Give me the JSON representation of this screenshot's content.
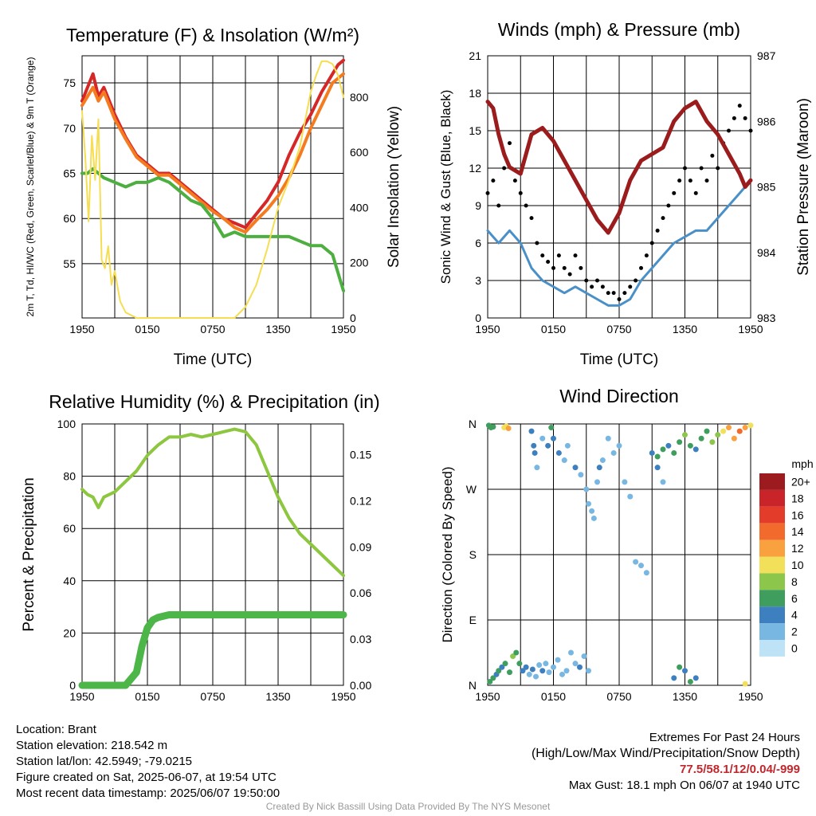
{
  "colors": {
    "red": "#d62728",
    "orange": "#f47b20",
    "green": "#4caf3f",
    "yellow": "#f5de52",
    "blue": "#4a90c8",
    "black": "#000000",
    "maroon": "#9b1c1c",
    "rh_green": "#8dc63f",
    "precip_green": "#4cb648"
  },
  "chart_data": [
    {
      "id": "temperature",
      "type": "line",
      "title": "Temperature (F) & Insolation (W/m²)",
      "xlabel": "Time (UTC)",
      "ylabel": "2m T, Td, HI/WC (Red, Green, Scarlet/Blue) & 9m T (Orange)",
      "ylabel2": "Solar Insolation (Yellow)",
      "x_ticks": [
        "1950",
        "0150",
        "0750",
        "1350",
        "1950"
      ],
      "x_hours_span": 24,
      "ylim": [
        49,
        78
      ],
      "y_ticks": [
        55,
        60,
        65,
        70,
        75
      ],
      "y2lim": [
        0,
        950
      ],
      "y2_ticks": [
        0,
        200,
        400,
        600,
        800
      ],
      "grid": true,
      "series": [
        {
          "axis": "left",
          "color": "red",
          "x": [
            0,
            0.5,
            1,
            1.5,
            2,
            3,
            4,
            5,
            6,
            7,
            8,
            9,
            10,
            11,
            12,
            13,
            14,
            15,
            16,
            17,
            18,
            19,
            20,
            21,
            22,
            23,
            23.5,
            24
          ],
          "y": [
            73,
            74.5,
            76,
            73.5,
            74.5,
            71.5,
            69,
            67,
            66,
            65,
            65,
            64,
            63,
            62,
            61,
            60,
            59.5,
            59,
            60.5,
            62,
            64,
            67,
            69.5,
            71.5,
            74,
            76,
            77,
            77.5
          ]
        },
        {
          "axis": "left",
          "color": "orange",
          "x": [
            0,
            0.5,
            1,
            1.5,
            2,
            3,
            4,
            5,
            6,
            7,
            8,
            9,
            10,
            11,
            12,
            13,
            14,
            15,
            16,
            17,
            18,
            19,
            20,
            21,
            22,
            23,
            23.5,
            24
          ],
          "y": [
            72.5,
            73.5,
            74.5,
            73,
            74,
            71,
            68.8,
            66.8,
            65.8,
            64.8,
            64.8,
            63.8,
            62.8,
            61.8,
            60.8,
            60,
            59,
            58.5,
            59.8,
            61,
            62.5,
            64.5,
            67,
            70,
            72.5,
            75,
            75.5,
            76
          ]
        },
        {
          "axis": "left",
          "color": "green",
          "x": [
            0,
            0.5,
            1,
            1.5,
            2,
            3,
            4,
            5,
            6,
            7,
            8,
            9,
            10,
            11,
            12,
            13,
            14,
            15,
            16,
            17,
            18,
            19,
            20,
            21,
            22,
            23,
            23.5,
            24
          ],
          "y": [
            65,
            65,
            65.5,
            65,
            64.5,
            64,
            63.5,
            64,
            64,
            64.5,
            64,
            63,
            62,
            61.5,
            60,
            58,
            58.5,
            58,
            58,
            58,
            58,
            58,
            57.5,
            57,
            57,
            56,
            54,
            52
          ]
        },
        {
          "axis": "right",
          "color": "yellow",
          "x": [
            0,
            0.3,
            0.6,
            0.9,
            1.2,
            1.5,
            1.8,
            2.1,
            2.4,
            2.7,
            3,
            3.5,
            4,
            5,
            6,
            7,
            8,
            9,
            10,
            11,
            12,
            13,
            14,
            15,
            16,
            17,
            18,
            19,
            20,
            21,
            21.5,
            22,
            22.5,
            23,
            23.5,
            24
          ],
          "y": [
            750,
            580,
            350,
            660,
            500,
            720,
            210,
            180,
            260,
            120,
            170,
            60,
            20,
            0,
            0,
            0,
            0,
            0,
            0,
            0,
            0,
            0,
            0,
            40,
            120,
            250,
            400,
            500,
            620,
            820,
            880,
            930,
            930,
            920,
            880,
            800
          ]
        }
      ]
    },
    {
      "id": "winds",
      "type": "line",
      "title": "Winds (mph) & Pressure (mb)",
      "xlabel": "Time (UTC)",
      "ylabel": "Sonic Wind & Gust (Blue, Black)",
      "ylabel2": "Station Pressure (Maroon)",
      "x_ticks": [
        "1950",
        "0150",
        "0750",
        "1350",
        "1950"
      ],
      "ylim": [
        0,
        21
      ],
      "y_ticks": [
        0,
        3,
        6,
        9,
        12,
        15,
        18,
        21
      ],
      "y2lim": [
        983,
        987
      ],
      "y2_ticks": [
        983,
        984,
        985,
        986,
        987
      ],
      "grid": true,
      "series": [
        {
          "axis": "left",
          "color": "blue",
          "type": "line",
          "x": [
            0,
            1,
            2,
            3,
            4,
            5,
            6,
            7,
            8,
            9,
            10,
            11,
            12,
            13,
            14,
            15,
            16,
            17,
            18,
            19,
            20,
            21,
            22,
            23,
            24
          ],
          "y": [
            7,
            6,
            7,
            6,
            4,
            3,
            2.5,
            2,
            2.5,
            2,
            1.5,
            1,
            1,
            1.5,
            3,
            4,
            5,
            6,
            6.5,
            7,
            7,
            8,
            9,
            10,
            11
          ]
        },
        {
          "axis": "left",
          "color": "black",
          "type": "scatter",
          "x": [
            0,
            0.5,
            1,
            1.5,
            2,
            2.5,
            3,
            3.5,
            4,
            4.5,
            5,
            5.5,
            6,
            6.5,
            7,
            7.5,
            8,
            8.5,
            9,
            9.5,
            10,
            10.5,
            11,
            11.5,
            12,
            12.5,
            13,
            13.5,
            14,
            14.5,
            15,
            15.5,
            16,
            16.5,
            17,
            17.5,
            18,
            18.5,
            19,
            19.5,
            20,
            20.5,
            21,
            21.5,
            22,
            22.5,
            23,
            23.5,
            24
          ],
          "y": [
            10,
            11,
            9,
            12,
            14,
            11,
            10,
            9,
            8,
            6,
            5,
            4.5,
            4,
            5,
            4,
            3.5,
            5,
            4,
            3,
            2.5,
            3,
            2.5,
            2,
            2,
            1.5,
            2,
            2.5,
            3,
            4,
            5,
            6,
            7,
            8,
            9,
            10,
            11,
            12,
            11,
            10,
            12,
            11,
            13,
            12,
            14,
            15,
            16,
            17,
            16,
            15
          ]
        },
        {
          "axis": "right",
          "color": "maroon",
          "type": "line",
          "x": [
            0,
            0.5,
            1,
            1.5,
            2,
            3,
            4,
            5,
            6,
            7,
            8,
            9,
            10,
            11,
            12,
            13,
            14,
            15,
            16,
            17,
            18,
            19,
            20,
            21,
            22,
            23,
            23.5,
            24
          ],
          "y": [
            986.3,
            986.2,
            985.8,
            985.5,
            985.3,
            985.2,
            985.8,
            985.9,
            985.7,
            985.4,
            985.1,
            984.8,
            984.5,
            984.3,
            984.6,
            985.1,
            985.4,
            985.5,
            985.6,
            986.0,
            986.2,
            986.3,
            986.0,
            985.8,
            985.5,
            985.2,
            985.0,
            985.1
          ]
        }
      ]
    },
    {
      "id": "humidity",
      "type": "line",
      "title": "Relative Humidity (%) & Precipitation (in)",
      "xlabel": "",
      "ylabel": "Percent & Precipitation",
      "x_ticks": [
        "1950",
        "0150",
        "0750",
        "1350",
        "1950"
      ],
      "ylim": [
        0,
        100
      ],
      "y_ticks": [
        0,
        20,
        40,
        60,
        80,
        100
      ],
      "y2lim": [
        0,
        0.17
      ],
      "y2_ticks": [
        "0.00",
        "0.03",
        "0.06",
        "0.09",
        "0.12",
        "0.15"
      ],
      "grid": true,
      "series": [
        {
          "axis": "left",
          "color": "rh_green",
          "x": [
            0,
            0.5,
            1,
            1.5,
            2,
            3,
            4,
            5,
            6,
            7,
            8,
            9,
            10,
            11,
            12,
            13,
            14,
            15,
            16,
            17,
            18,
            19,
            20,
            21,
            22,
            23,
            23.5,
            24
          ],
          "y": [
            75,
            73,
            72,
            68,
            72,
            74,
            78,
            82,
            88,
            92,
            95,
            95,
            96,
            95,
            96,
            97,
            98,
            97,
            92,
            82,
            72,
            64,
            58,
            54,
            50,
            46,
            44,
            42
          ]
        },
        {
          "axis": "left",
          "color": "precip_green",
          "x": [
            0,
            1,
            2,
            3,
            4,
            5,
            5.5,
            6,
            6.5,
            7,
            8,
            10,
            12,
            14,
            16,
            18,
            20,
            22,
            24
          ],
          "y": [
            0,
            0,
            0,
            0,
            0,
            5,
            15,
            22,
            25,
            26,
            27,
            27,
            27,
            27,
            27,
            27,
            27,
            27,
            27
          ]
        }
      ]
    },
    {
      "id": "direction",
      "type": "scatter",
      "title": "Wind Direction",
      "xlabel": "",
      "ylabel": "Direction (Colored By Speed)",
      "x_ticks": [
        "1950",
        "0150",
        "0750",
        "1350",
        "1950"
      ],
      "y_ticks": [
        "N",
        "E",
        "S",
        "W",
        "N"
      ],
      "legend_title": "mph",
      "legend_labels": [
        "20+",
        "18",
        "16",
        "14",
        "12",
        "10",
        "8",
        "6",
        "4",
        "2",
        "0"
      ],
      "legend_colors": [
        "#9b1b1e",
        "#c8242a",
        "#e33c2a",
        "#f26a2c",
        "#f9a03f",
        "#f2e05a",
        "#8cc64b",
        "#3f9e5e",
        "#3d7fbf",
        "#79b7e3",
        "#bfe3f6"
      ],
      "grid": true,
      "points": [
        [
          0.1,
          358,
          5
        ],
        [
          0.3,
          355,
          6
        ],
        [
          0.5,
          356,
          5
        ],
        [
          1.5,
          355,
          9
        ],
        [
          1.7,
          357,
          10
        ],
        [
          1.9,
          354,
          11
        ],
        [
          0.2,
          5,
          5
        ],
        [
          0.5,
          10,
          6
        ],
        [
          0.8,
          15,
          4
        ],
        [
          1.0,
          20,
          5
        ],
        [
          1.3,
          25,
          4
        ],
        [
          1.6,
          30,
          6
        ],
        [
          2.0,
          18,
          5
        ],
        [
          2.3,
          40,
          7
        ],
        [
          2.6,
          45,
          6
        ],
        [
          2.9,
          30,
          5
        ],
        [
          3.2,
          20,
          4
        ],
        [
          3.5,
          25,
          3
        ],
        [
          3.8,
          15,
          2
        ],
        [
          4.1,
          22,
          3
        ],
        [
          4.4,
          12,
          2
        ],
        [
          4.7,
          28,
          2
        ],
        [
          5.0,
          20,
          3
        ],
        [
          5.3,
          30,
          2
        ],
        [
          5.6,
          18,
          1
        ],
        [
          6.0,
          25,
          2
        ],
        [
          6.4,
          35,
          1
        ],
        [
          6.8,
          15,
          1
        ],
        [
          7.2,
          20,
          2
        ],
        [
          7.6,
          45,
          1
        ],
        [
          8.0,
          30,
          2
        ],
        [
          8.4,
          25,
          3
        ],
        [
          8.8,
          40,
          1
        ],
        [
          9.2,
          20,
          2
        ],
        [
          4.0,
          350,
          3
        ],
        [
          4.2,
          330,
          4
        ],
        [
          4.3,
          320,
          3
        ],
        [
          4.5,
          300,
          2
        ],
        [
          5.0,
          340,
          2
        ],
        [
          5.5,
          330,
          3
        ],
        [
          5.8,
          355,
          5
        ],
        [
          6.0,
          340,
          4
        ],
        [
          6.5,
          320,
          3
        ],
        [
          7.0,
          310,
          1
        ],
        [
          7.3,
          330,
          2
        ],
        [
          8.0,
          300,
          3
        ],
        [
          8.5,
          290,
          2
        ],
        [
          9.0,
          270,
          2
        ],
        [
          9.2,
          250,
          1
        ],
        [
          9.5,
          240,
          2
        ],
        [
          9.7,
          230,
          1
        ],
        [
          10.0,
          280,
          2
        ],
        [
          10.2,
          300,
          3
        ],
        [
          10.5,
          310,
          2
        ],
        [
          11,
          340,
          1
        ],
        [
          11.5,
          320,
          2
        ],
        [
          12,
          330,
          1
        ],
        [
          12.5,
          280,
          2
        ],
        [
          13,
          260,
          1
        ],
        [
          13.5,
          170,
          1
        ],
        [
          14,
          165,
          1
        ],
        [
          14.5,
          155,
          2
        ],
        [
          15,
          320,
          4
        ],
        [
          15.5,
          315,
          5
        ],
        [
          16,
          325,
          6
        ],
        [
          16.5,
          330,
          4
        ],
        [
          17,
          320,
          5
        ],
        [
          17.5,
          335,
          6
        ],
        [
          18,
          345,
          7
        ],
        [
          18.5,
          330,
          5
        ],
        [
          19,
          325,
          4
        ],
        [
          19.5,
          340,
          6
        ],
        [
          20,
          350,
          5
        ],
        [
          20.5,
          335,
          7
        ],
        [
          21,
          345,
          8
        ],
        [
          21.5,
          350,
          10
        ],
        [
          22,
          355,
          11
        ],
        [
          22.5,
          340,
          12
        ],
        [
          23,
          350,
          13
        ],
        [
          23.5,
          355,
          11
        ],
        [
          24,
          358,
          10
        ],
        [
          15.5,
          300,
          3
        ],
        [
          16,
          280,
          2
        ],
        [
          17,
          10,
          4
        ],
        [
          17.5,
          25,
          5
        ],
        [
          18,
          20,
          3
        ],
        [
          18.5,
          5,
          6
        ],
        [
          19,
          10,
          4
        ],
        [
          23.5,
          2,
          10
        ]
      ]
    }
  ],
  "footer": {
    "location": "Location: Brant",
    "elevation": "Station elevation: 218.542 m",
    "latlon": "Station lat/lon: 42.5949; -79.0215",
    "created": "Figure created on Sat, 2025-06-07, at 19:54 UTC",
    "recent": "Most recent data timestamp: 2025/06/07 19:50:00",
    "extremes_title": "Extremes For Past 24 Hours",
    "extremes_subtitle": "(High/Low/Max Wind/Precipitation/Snow Depth)",
    "extremes_values": "77.5/58.1/12/0.04/-999",
    "max_gust": "Max Gust: 18.1 mph On 06/07 at 1940 UTC",
    "credit": "Created By Nick Bassill Using Data Provided By The NYS Mesonet"
  }
}
